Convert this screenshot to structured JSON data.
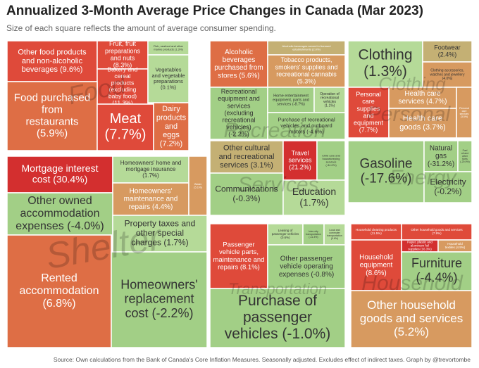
{
  "title": "Annualized 3-Month Average Price Changes in Canada (Mar 2023)",
  "subtitle": "Size of each square reflects the amount of average consumer spending.",
  "source": "Source: Own calculations from the Bank of Canada's Core Inflation Measures. Seasonally adjusted. Excludes effect of indirect taxes. Graph by @trevortombe",
  "colors": {
    "deep_red": "#d32f2f",
    "red": "#df4a3a",
    "orange": "#de6e45",
    "tan": "#d79a60",
    "light_tan": "#c4b074",
    "light_green": "#b5da98",
    "green": "#a2cf86",
    "border": "#ffffff",
    "group_label": "#000000"
  },
  "chart_data": {
    "type": "treemap",
    "value_meaning": "annualized 3-month average price change (%)",
    "size_meaning": "average consumer spending",
    "groups": [
      {
        "name": "Food",
        "items": [
          {
            "label": "Other food products and non-alcoholic beverages (9.6%)",
            "value": 9.6
          },
          {
            "label": "Fruit, fruit preparations and nuts (8.3%)",
            "value": 8.3
          },
          {
            "label": "Fish, seafood and other marine products (1.3%)",
            "value": 1.3
          },
          {
            "label": "Bakery and cereal products (excluding baby food) (11.3%)",
            "value": 11.3
          },
          {
            "label": "Vegetables and vegetable preparations (0.1%)",
            "value": 0.1
          },
          {
            "label": "Food purchased from restaurants (5.9%)",
            "value": 5.9
          },
          {
            "label": "Meat (7.7%)",
            "value": 7.7
          },
          {
            "label": "Dairy products and eggs (7.2%)",
            "value": 7.2
          }
        ]
      },
      {
        "name": "Recreation",
        "items": [
          {
            "label": "Alcoholic beverages purchased from stores (5.6%)",
            "value": 5.6
          },
          {
            "label": "Alcoholic beverages served in licensed establishments (2.0%)",
            "value": 2.0
          },
          {
            "label": "Tobacco products, smokers' supplies and recreational cannabis (5.3%)",
            "value": 5.3
          },
          {
            "label": "Recreational equipment and services (excluding recreational vehicles) (-2.2%)",
            "value": -2.2
          },
          {
            "label": "Home entertainment equipment, parts and services (-8.7%)",
            "value": -8.7
          },
          {
            "label": "Operation of recreational vehicles (1.1%)",
            "value": 1.1
          },
          {
            "label": "Purchase of recreational vehicles and outboard motors (-4.6%)",
            "value": -4.6
          }
        ]
      },
      {
        "name": "Clothing",
        "items": [
          {
            "label": "Clothing (1.3%)",
            "value": 1.3
          },
          {
            "label": "Footwear (2.4%)",
            "value": 2.4
          },
          {
            "label": "Clothing accessories, watches and jewellery (4.0%)",
            "value": 4.0
          }
        ]
      },
      {
        "name": "Personal",
        "items": [
          {
            "label": "Personal care supplies and equipment (7.7%)",
            "value": 7.7
          },
          {
            "label": "Health care services (4.7%)",
            "value": 4.7
          },
          {
            "label": "Health care goods (3.7%)",
            "value": 3.7
          },
          {
            "label": "Personal care services (3.5%)",
            "value": 3.5
          }
        ]
      },
      {
        "name": "Shelter",
        "items": [
          {
            "label": "Mortgage interest cost (30.4%)",
            "value": 30.4
          },
          {
            "label": "Homeowners' home and mortgage insurance (1.7%)",
            "value": 1.7
          },
          {
            "label": "Homeowners' maintenance and repairs (4.4%)",
            "value": 4.4
          },
          {
            "label": "Water (5.1%)",
            "value": 5.1
          },
          {
            "label": "Other owned accommodation expenses (-4.0%)",
            "value": -4.0
          },
          {
            "label": "Property taxes and other special charges (1.7%)",
            "value": 1.7
          },
          {
            "label": "Rented accommodation (6.8%)",
            "value": 6.8
          },
          {
            "label": "Homeowners' replacement cost (-2.2%)",
            "value": -2.2
          }
        ]
      },
      {
        "name": "Services",
        "items": [
          {
            "label": "Other cultural and recreational services (3.1%)",
            "value": 3.1
          },
          {
            "label": "Travel services (21.2%)",
            "value": 21.2
          },
          {
            "label": "Child care and housekeeping services (-34.0%)",
            "value": -34.0
          },
          {
            "label": "Communications (-0.3%)",
            "value": -0.3
          },
          {
            "label": "Education (1.7%)",
            "value": 1.7
          }
        ]
      },
      {
        "name": "Energy",
        "items": [
          {
            "label": "Gasoline (-17.6%)",
            "value": -17.6
          },
          {
            "label": "Natural gas (-31.2%)",
            "value": -31.2
          },
          {
            "label": "Fuel oil and other fuels (-20.0%)",
            "value": -20.0
          },
          {
            "label": "Electricity (-0.2%)",
            "value": -0.2
          }
        ]
      },
      {
        "name": "Transportation",
        "items": [
          {
            "label": "Passenger vehicle parts, maintenance and repairs (8.1%)",
            "value": 8.1
          },
          {
            "label": "Leasing of passenger vehicles (0.6%)",
            "value": 0.6
          },
          {
            "label": "Inter-city transportation (-11.3%)",
            "value": -11.3
          },
          {
            "label": "Local and commuter transportation (0.6%)",
            "value": 0.6
          },
          {
            "label": "Other passenger vehicle operating expenses (-0.8%)",
            "value": -0.8
          },
          {
            "label": "Purchase of passenger vehicles (-1.0%)",
            "value": -1.0
          }
        ]
      },
      {
        "name": "Household",
        "items": [
          {
            "label": "Household cleaning products (11.5%)",
            "value": 11.5
          },
          {
            "label": "Other household goods and services (7.9%)",
            "value": 7.9
          },
          {
            "label": "Paper, plastic and aluminum foil supplies (16.3%)",
            "value": 16.3
          },
          {
            "label": "Household textiles (4.9%)",
            "value": 4.9
          },
          {
            "label": "Household equipment (8.6%)",
            "value": 8.6
          },
          {
            "label": "Furniture (-4.4%)",
            "value": -4.4
          },
          {
            "label": "Other household goods and services (5.2%)",
            "value": 5.2
          }
        ]
      }
    ]
  }
}
